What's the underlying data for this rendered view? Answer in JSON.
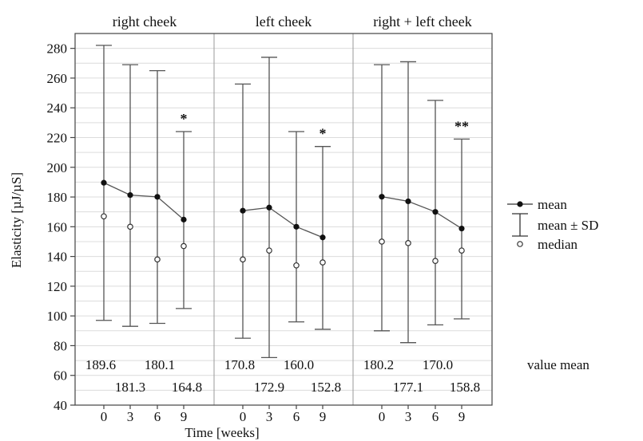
{
  "chart_data": {
    "type": "line",
    "xlabel": "Time [weeks]",
    "ylabel": "Elasticity [µJ/µS]",
    "ylim": [
      40,
      290
    ],
    "yticks": [
      40,
      60,
      80,
      100,
      120,
      140,
      160,
      180,
      200,
      220,
      240,
      260,
      280
    ],
    "x": [
      "0",
      "3",
      "6",
      "9"
    ],
    "grid": true,
    "legend_position": "right",
    "legend": {
      "mean": "mean",
      "sd": "mean ± SD",
      "median": "median"
    },
    "value_mean_label": "value mean",
    "panels": [
      {
        "title": "right cheek",
        "mean": [
          189.6,
          181.3,
          180.1,
          164.8
        ],
        "sd_upper": [
          282,
          269,
          265,
          224
        ],
        "sd_lower": [
          97,
          93,
          95,
          105
        ],
        "median": [
          167,
          160,
          138,
          147
        ],
        "annotation": "*",
        "mean_labels": [
          "189.6",
          "181.3",
          "180.1",
          "164.8"
        ]
      },
      {
        "title": "left cheek",
        "mean": [
          170.8,
          172.9,
          160.0,
          152.8
        ],
        "sd_upper": [
          256,
          274,
          224,
          214
        ],
        "sd_lower": [
          85,
          72,
          96,
          91
        ],
        "median": [
          138,
          144,
          134,
          136
        ],
        "annotation": "*",
        "mean_labels": [
          "170.8",
          "172.9",
          "160.0",
          "152.8"
        ]
      },
      {
        "title": "right + left cheek",
        "mean": [
          180.2,
          177.1,
          170.0,
          158.8
        ],
        "sd_upper": [
          269,
          271,
          245,
          219
        ],
        "sd_lower": [
          90,
          82,
          94,
          98
        ],
        "median": [
          150,
          149,
          137,
          144
        ],
        "annotation": "**",
        "mean_labels": [
          "180.2",
          "177.1",
          "170.0",
          "158.8"
        ]
      }
    ]
  }
}
